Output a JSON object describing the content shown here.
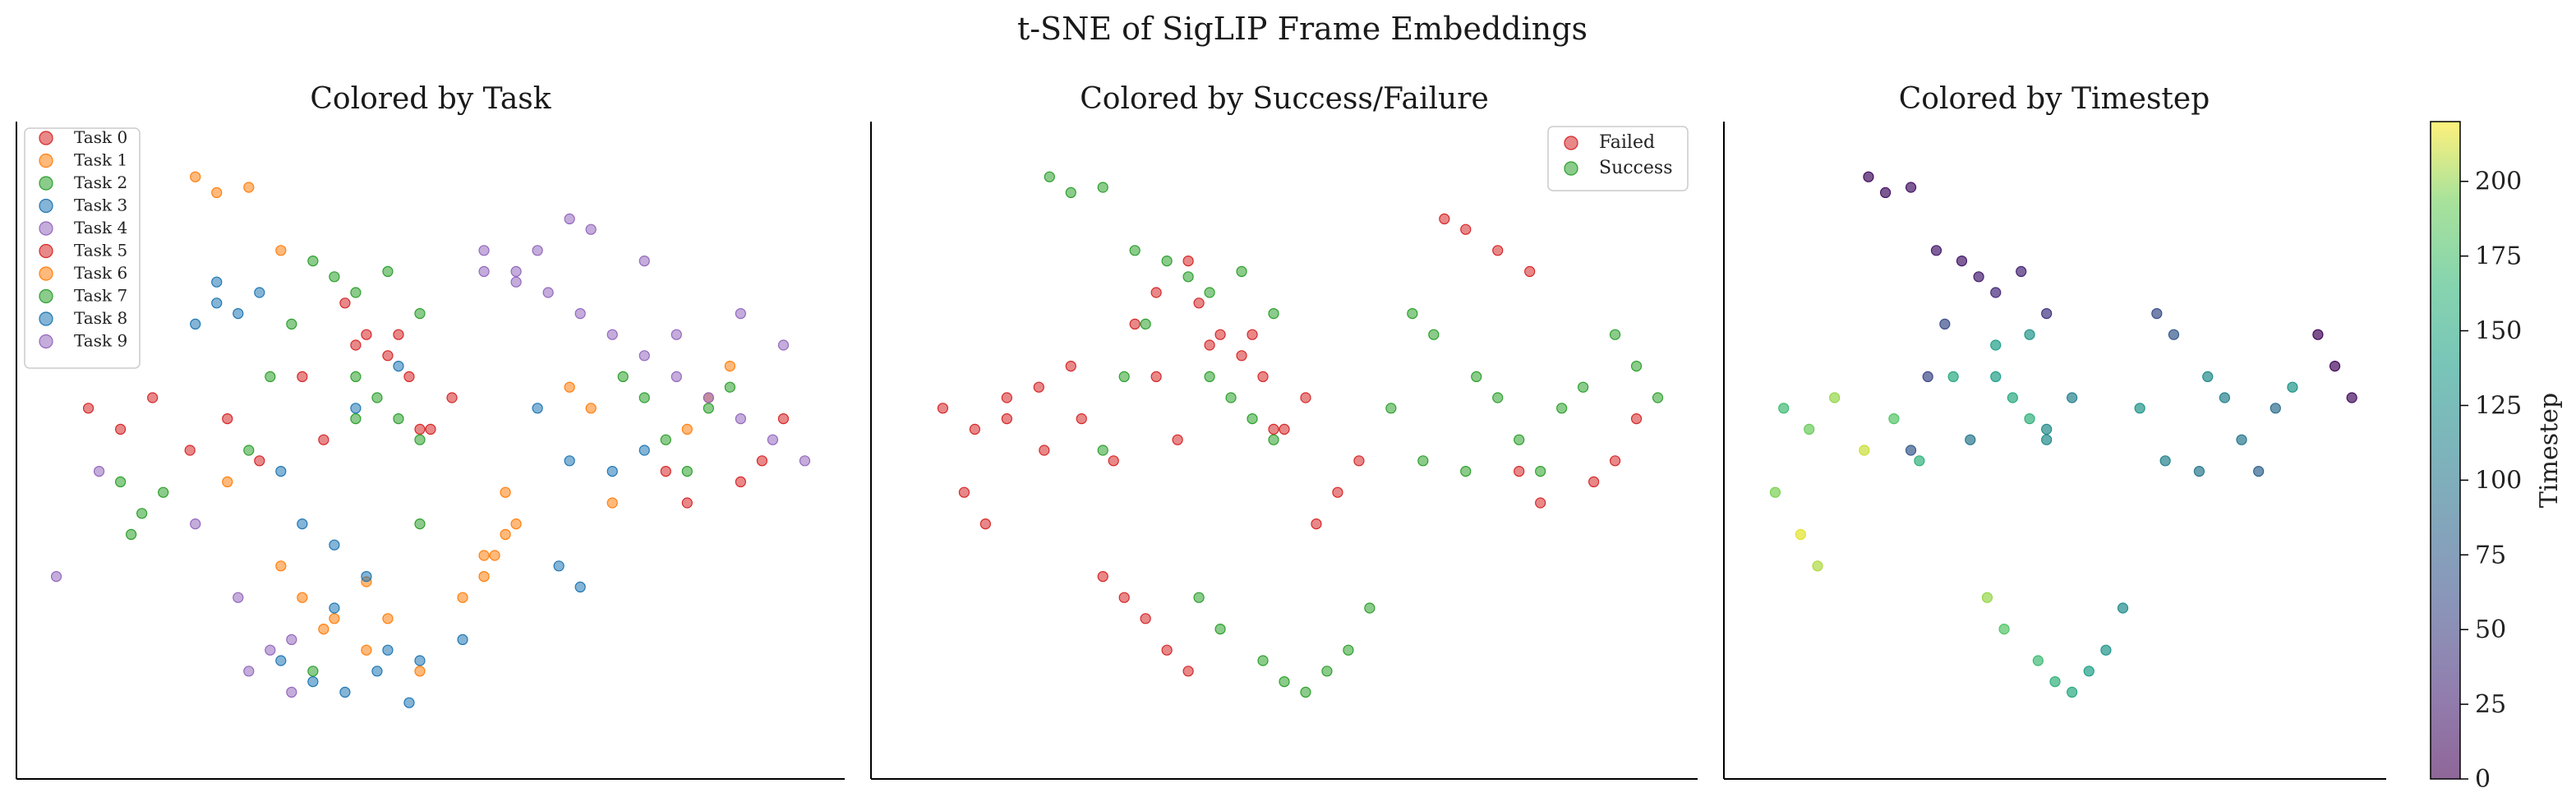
{
  "suptitle": "t-SNE of SigLIP Frame Embeddings",
  "chart_data": [
    {
      "type": "scatter",
      "title": "Colored by Task",
      "xlabel": "",
      "ylabel": "",
      "legend": {
        "placement": "top-left",
        "entries": [
          "Task 0",
          "Task 1",
          "Task 2",
          "Task 3",
          "Task 4",
          "Task 5",
          "Task 6",
          "Task 7",
          "Task 8",
          "Task 9"
        ]
      },
      "colors": [
        "#d62728",
        "#ff7f0e",
        "#2ca02c",
        "#1f77b4",
        "#9467bd",
        "#d62728",
        "#ff7f0e",
        "#2ca02c",
        "#1f77b4",
        "#9467bd"
      ],
      "series": [
        {
          "name": "Task 0",
          "color": "#d62728",
          "x": [
            -64,
            -58,
            -52,
            -45,
            -38,
            -32,
            -24,
            -14,
            -6,
            -2,
            4,
            -20
          ],
          "y": [
            8,
            4,
            10,
            0,
            6,
            -2,
            14,
            20,
            22,
            4,
            10,
            2
          ]
        },
        {
          "name": "Task 1",
          "color": "#ff7f0e",
          "x": [
            -44,
            -40,
            -34,
            -28,
            -24,
            -18,
            -12,
            -8,
            10,
            16,
            14,
            -28,
            -38
          ],
          "y": [
            52,
            49,
            50,
            38,
            -28,
            -32,
            -25,
            -32,
            -20,
            -14,
            -8,
            -22,
            -6
          ]
        },
        {
          "name": "Task 2",
          "color": "#2ca02c",
          "x": [
            -22,
            -18,
            -14,
            -8,
            -2,
            -26,
            -30,
            -34,
            -56,
            -50,
            -22,
            -2,
            -14
          ],
          "y": [
            36,
            33,
            30,
            34,
            26,
            24,
            14,
            0,
            -16,
            -8,
            -42,
            -14,
            6
          ]
        },
        {
          "name": "Task 3",
          "color": "#1f77b4",
          "x": [
            -40,
            -44,
            -28,
            -24,
            -18,
            -12,
            -2,
            6,
            20,
            26,
            34,
            40,
            -14,
            -6
          ],
          "y": [
            28,
            24,
            -4,
            -14,
            -18,
            -24,
            -40,
            -36,
            8,
            -2,
            -4,
            0,
            8,
            16
          ]
        },
        {
          "name": "Task 4",
          "color": "#9467bd",
          "x": [
            26,
            30,
            20,
            16,
            10,
            40,
            46,
            58,
            66,
            -70,
            -62,
            -44,
            -36,
            -26
          ],
          "y": [
            44,
            42,
            38,
            32,
            34,
            36,
            22,
            26,
            20,
            -24,
            -4,
            -14,
            -28,
            -36
          ]
        },
        {
          "name": "Task 5",
          "color": "#d62728",
          "x": [
            -16,
            -12,
            -8,
            -4,
            0,
            44,
            48,
            58,
            62,
            66
          ],
          "y": [
            28,
            22,
            18,
            14,
            4,
            -4,
            -10,
            -6,
            -2,
            6
          ]
        },
        {
          "name": "Task 6",
          "color": "#ff7f0e",
          "x": [
            6,
            10,
            12,
            14,
            -12,
            -20,
            -2,
            26,
            30,
            34,
            48,
            52,
            56
          ],
          "y": [
            -28,
            -24,
            -20,
            -16,
            -38,
            -34,
            -42,
            12,
            8,
            -10,
            4,
            10,
            16
          ]
        },
        {
          "name": "Task 7",
          "color": "#2ca02c",
          "x": [
            -14,
            -10,
            -6,
            -2,
            36,
            40,
            44,
            48,
            52,
            56,
            -58,
            -54
          ],
          "y": [
            14,
            10,
            6,
            2,
            14,
            10,
            2,
            -4,
            8,
            12,
            -6,
            -12
          ]
        },
        {
          "name": "Task 8",
          "color": "#1f77b4",
          "x": [
            -32,
            -36,
            -40,
            -28,
            -22,
            -16,
            -10,
            -4,
            -8,
            -18,
            24,
            28
          ],
          "y": [
            30,
            26,
            32,
            -40,
            -44,
            -46,
            -42,
            -48,
            -38,
            -30,
            -22,
            -26
          ]
        },
        {
          "name": "Task 9",
          "color": "#9467bd",
          "x": [
            -34,
            -30,
            -26,
            10,
            16,
            22,
            28,
            34,
            40,
            46,
            52,
            58,
            64,
            70
          ],
          "y": [
            -42,
            -38,
            -46,
            38,
            34,
            30,
            26,
            22,
            18,
            14,
            10,
            6,
            2,
            -2
          ]
        }
      ]
    },
    {
      "type": "scatter",
      "title": "Colored by Success/Failure",
      "xlabel": "",
      "ylabel": "",
      "legend": {
        "placement": "top-right",
        "entries": [
          "Failed",
          "Success"
        ]
      },
      "series": [
        {
          "name": "Failed",
          "color": "#d62728",
          "x": [
            -64,
            -58,
            -52,
            -45,
            -38,
            -32,
            -24,
            -14,
            -6,
            -2,
            4,
            -20,
            -16,
            -12,
            -8,
            -4,
            0,
            44,
            48,
            58,
            62,
            66,
            -34,
            -30,
            -26,
            -22,
            -18,
            6,
            10,
            14,
            30,
            34,
            40,
            46,
            -40,
            -46,
            -52,
            -56,
            -60,
            -28,
            -24,
            -18
          ],
          "y": [
            8,
            4,
            10,
            0,
            6,
            -2,
            14,
            20,
            22,
            4,
            10,
            2,
            28,
            22,
            18,
            14,
            4,
            -4,
            -10,
            -6,
            -2,
            6,
            -24,
            -28,
            -32,
            -38,
            -42,
            -14,
            -8,
            -2,
            44,
            42,
            38,
            34,
            16,
            12,
            6,
            -14,
            -8,
            24,
            30,
            36
          ]
        },
        {
          "name": "Success",
          "color": "#2ca02c",
          "x": [
            -44,
            -40,
            -34,
            -28,
            -22,
            -18,
            -14,
            -8,
            -2,
            -26,
            -30,
            -34,
            36,
            40,
            44,
            48,
            52,
            56,
            -14,
            -10,
            -6,
            -2,
            20,
            26,
            34,
            -16,
            -12,
            -4,
            0,
            4,
            8,
            12,
            16,
            24,
            28,
            62,
            66,
            70
          ],
          "y": [
            52,
            49,
            50,
            38,
            36,
            33,
            30,
            34,
            26,
            24,
            14,
            0,
            14,
            10,
            2,
            -4,
            8,
            12,
            14,
            10,
            6,
            2,
            8,
            -2,
            -4,
            -28,
            -34,
            -40,
            -44,
            -46,
            -42,
            -38,
            -30,
            26,
            22,
            22,
            16,
            10
          ]
        }
      ]
    },
    {
      "type": "scatter",
      "title": "Colored by Timestep",
      "xlabel": "",
      "ylabel": "",
      "colorbar": {
        "label": "Timestep",
        "ticks": [
          0,
          25,
          50,
          75,
          100,
          125,
          150,
          175,
          200
        ],
        "range": [
          0,
          220
        ],
        "colormap": "viridis"
      },
      "points": {
        "x": [
          -44,
          -40,
          -34,
          -28,
          -22,
          -18,
          -14,
          -8,
          -2,
          -26,
          -30,
          -34,
          36,
          40,
          44,
          48,
          52,
          56,
          -14,
          -10,
          -6,
          -2,
          20,
          26,
          34,
          -16,
          -12,
          -4,
          0,
          4,
          8,
          12,
          16,
          24,
          28,
          62,
          66,
          70,
          -64,
          -58,
          -52,
          -45,
          -38,
          -32,
          -24,
          -14,
          -6,
          -2,
          4,
          -20,
          -60,
          -56,
          -66
        ],
        "y": [
          52,
          49,
          50,
          38,
          36,
          33,
          30,
          34,
          26,
          24,
          14,
          0,
          14,
          10,
          2,
          -4,
          8,
          12,
          14,
          10,
          6,
          2,
          8,
          -2,
          -4,
          -28,
          -34,
          -40,
          -44,
          -46,
          -42,
          -38,
          -30,
          26,
          22,
          22,
          16,
          10,
          8,
          4,
          10,
          0,
          6,
          -2,
          14,
          20,
          22,
          4,
          10,
          2,
          -16,
          -22,
          -8
        ],
        "t": [
          10,
          12,
          14,
          20,
          18,
          22,
          30,
          26,
          40,
          60,
          55,
          70,
          120,
          110,
          100,
          80,
          90,
          130,
          140,
          150,
          160,
          120,
          130,
          110,
          100,
          200,
          180,
          170,
          160,
          150,
          140,
          130,
          120,
          60,
          70,
          5,
          8,
          10,
          170,
          190,
          200,
          210,
          180,
          160,
          150,
          140,
          130,
          120,
          110,
          100,
          215,
          205,
          195
        ]
      }
    }
  ]
}
